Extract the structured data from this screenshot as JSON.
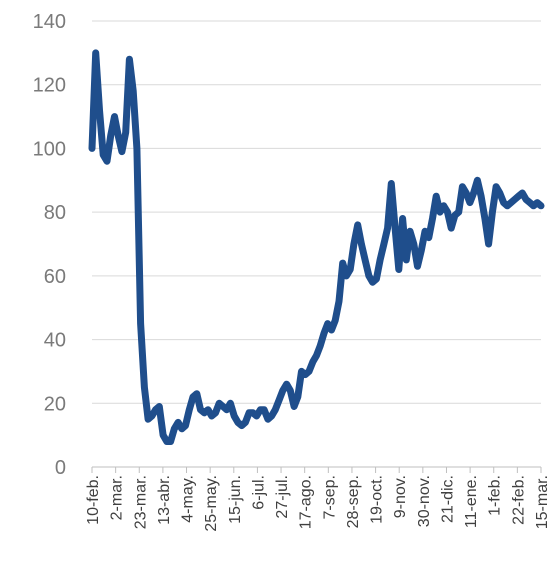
{
  "chart_data": {
    "type": "line",
    "title": "",
    "xlabel": "",
    "ylabel": "",
    "ylim": [
      0,
      140
    ],
    "yticks": [
      0,
      20,
      40,
      60,
      80,
      100,
      120,
      140
    ],
    "grid": true,
    "legend": "none",
    "line_color": "#1f4e8c",
    "x_categories": [
      "10-feb.",
      "2-mar.",
      "23-mar.",
      "13-abr.",
      "4-may.",
      "25-may.",
      "15-jun.",
      "6-jul.",
      "27-jul.",
      "17-ago.",
      "7-sep.",
      "28-sep.",
      "19-oct.",
      "9-nov.",
      "30-nov.",
      "21-dic.",
      "11-ene.",
      "1-feb.",
      "22-feb.",
      "15-mar."
    ],
    "series": [
      {
        "name": "",
        "x": [
          0,
          0.5,
          1,
          1.5,
          2,
          2.5,
          3,
          3.5,
          4,
          4.5,
          5,
          5.5,
          6,
          6.5,
          7,
          7.5,
          8,
          8.5,
          9,
          9.5,
          10,
          10.5,
          11,
          11.5,
          12,
          12.5,
          13,
          13.5,
          14,
          14.5,
          15,
          15.5,
          16,
          16.5,
          17,
          17.5,
          18,
          18.5,
          19,
          19.5,
          20,
          20.5,
          21,
          21.5,
          22,
          22.5,
          23,
          23.5,
          24,
          24.5,
          25,
          25.5,
          26,
          26.5,
          27,
          27.5,
          28,
          28.5,
          29,
          29.5,
          30,
          30.5,
          31,
          31.5,
          32,
          32.5,
          33,
          33.5,
          34,
          34.5,
          35,
          35.5,
          36,
          36.5,
          37,
          37.5,
          38,
          38.5,
          39,
          39.5,
          40,
          40.5,
          41,
          41.5,
          42,
          42.5,
          43,
          43.5,
          44,
          44.5,
          45,
          45.5,
          46,
          46.5,
          47,
          47.5,
          48,
          48.5,
          49,
          49.5,
          50,
          50.5,
          51,
          51.5,
          52,
          52.5,
          53,
          53.5,
          54,
          54.5,
          55,
          55.5,
          56,
          56.5,
          57,
          57.5,
          58,
          58.5,
          59,
          59.5,
          60
        ],
        "values": [
          100,
          130,
          112,
          98,
          96,
          104,
          110,
          104,
          99,
          105,
          128,
          118,
          100,
          45,
          25,
          15,
          16,
          18,
          19,
          10,
          8,
          8,
          12,
          14,
          12,
          13,
          18,
          22,
          23,
          18,
          17,
          18,
          16,
          17,
          20,
          19,
          18,
          20,
          16,
          14,
          13,
          14,
          17,
          17,
          16,
          18,
          18,
          15,
          16,
          18,
          21,
          24,
          26,
          24,
          19,
          22,
          30,
          29,
          30,
          33,
          35,
          38,
          42,
          45,
          43,
          46,
          52,
          64,
          60,
          62,
          70,
          76,
          70,
          65,
          60,
          58,
          59,
          65,
          70,
          75,
          89,
          75,
          62,
          78,
          65,
          74,
          70,
          63,
          68,
          74,
          72,
          78,
          85,
          80,
          82,
          80,
          75,
          79,
          80,
          88,
          86,
          83,
          86,
          90,
          85,
          78,
          70,
          80,
          88,
          86,
          83,
          82,
          83,
          84,
          85,
          86,
          84,
          83,
          82,
          83,
          82
        ]
      }
    ]
  }
}
